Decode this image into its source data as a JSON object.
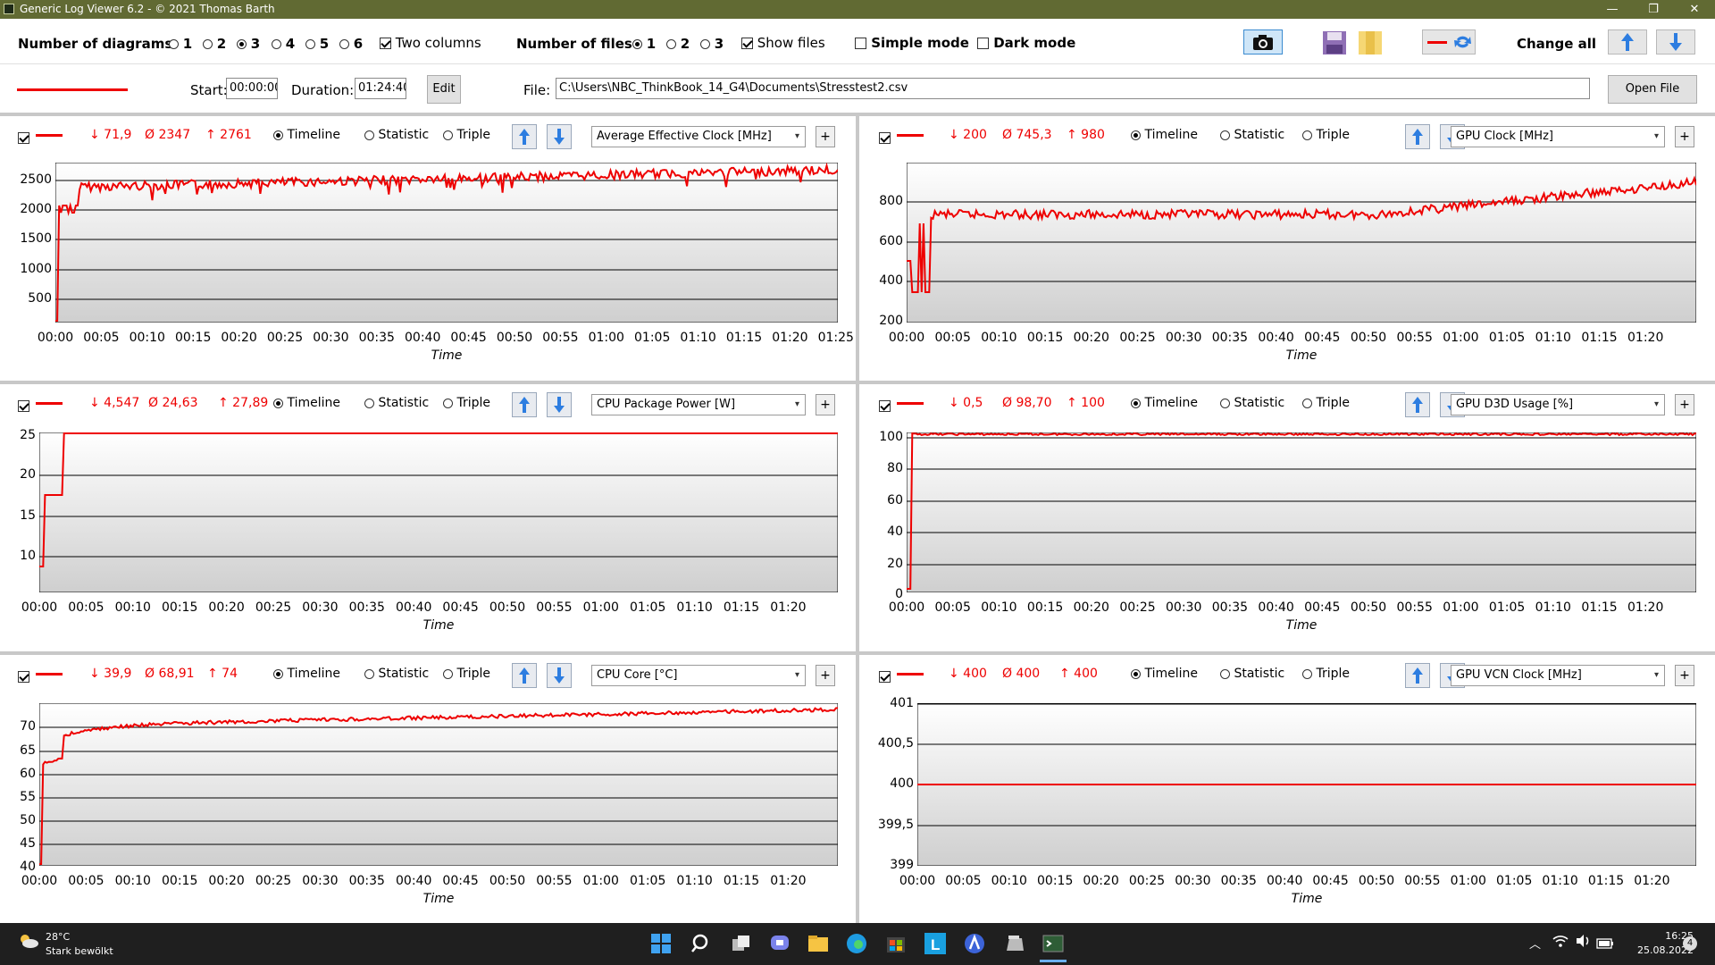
{
  "window": {
    "title": "Generic Log Viewer 6.2 - © 2021 Thomas Barth",
    "minimize": "—",
    "maximize": "❐",
    "close": "✕"
  },
  "toolbar": {
    "diagrams_label": "Number of diagrams",
    "diagram_options": [
      "1",
      "2",
      "3",
      "4",
      "5",
      "6"
    ],
    "diagrams_selected": "3",
    "two_columns_label": "Two columns",
    "two_columns_checked": true,
    "files_label": "Number of files",
    "file_options": [
      "1",
      "2",
      "3"
    ],
    "files_selected": "1",
    "show_files_label": "Show files",
    "show_files_checked": true,
    "simple_mode_label": "Simple mode",
    "simple_mode_checked": false,
    "dark_mode_label": "Dark mode",
    "dark_mode_checked": false,
    "change_all_label": "Change all"
  },
  "filebar": {
    "start_label": "Start:",
    "start_value": "00:00:00",
    "duration_label": "Duration:",
    "duration_value": "01:24:40",
    "edit_label": "Edit",
    "file_label": "File:",
    "file_path": "C:\\Users\\NBC_ThinkBook_14_G4\\Documents\\Stresstest2.csv",
    "open_file_label": "Open File"
  },
  "options": {
    "timeline": "Timeline",
    "statistic": "Statistic",
    "triple": "Triple"
  },
  "time_axis_label": "Time",
  "panels": [
    {
      "sensor": "Average Effective Clock [MHz]",
      "min": "↓ 71,9",
      "avg": "Ø 2347",
      "max": "↑ 2761",
      "yticks": [
        "2500",
        "2000",
        "1500",
        "1000",
        "500"
      ],
      "xticks": [
        "00:00",
        "00:05",
        "00:10",
        "00:15",
        "00:20",
        "00:25",
        "00:30",
        "00:35",
        "00:40",
        "00:45",
        "00:50",
        "00:55",
        "01:00",
        "01:05",
        "01:10",
        "01:15",
        "01:20",
        "01:25"
      ]
    },
    {
      "sensor": "GPU Clock [MHz]",
      "min": "↓ 200",
      "avg": "Ø 745,3",
      "max": "↑ 980",
      "yticks": [
        "800",
        "600",
        "400",
        "200"
      ],
      "xticks": [
        "00:00",
        "00:05",
        "00:10",
        "00:15",
        "00:20",
        "00:25",
        "00:30",
        "00:35",
        "00:40",
        "00:45",
        "00:50",
        "00:55",
        "01:00",
        "01:05",
        "01:10",
        "01:15",
        "01:20"
      ]
    },
    {
      "sensor": "CPU Package Power [W]",
      "min": "↓ 4,547",
      "avg": "Ø 24,63",
      "max": "↑ 27,89",
      "yticks": [
        "25",
        "20",
        "15",
        "10"
      ],
      "xticks": [
        "00:00",
        "00:05",
        "00:10",
        "00:15",
        "00:20",
        "00:25",
        "00:30",
        "00:35",
        "00:40",
        "00:45",
        "00:50",
        "00:55",
        "01:00",
        "01:05",
        "01:10",
        "01:15",
        "01:20"
      ]
    },
    {
      "sensor": "GPU D3D Usage [%]",
      "min": "↓ 0,5",
      "avg": "Ø 98,70",
      "max": "↑ 100",
      "yticks": [
        "100",
        "80",
        "60",
        "40",
        "20",
        "0"
      ],
      "xticks": [
        "00:00",
        "00:05",
        "00:10",
        "00:15",
        "00:20",
        "00:25",
        "00:30",
        "00:35",
        "00:40",
        "00:45",
        "00:50",
        "00:55",
        "01:00",
        "01:05",
        "01:10",
        "01:15",
        "01:20"
      ]
    },
    {
      "sensor": "CPU Core [°C]",
      "min": "↓ 39,9",
      "avg": "Ø 68,91",
      "max": "↑ 74",
      "yticks": [
        "70",
        "65",
        "60",
        "55",
        "50",
        "45",
        "40"
      ],
      "xticks": [
        "00:00",
        "00:05",
        "00:10",
        "00:15",
        "00:20",
        "00:25",
        "00:30",
        "00:35",
        "00:40",
        "00:45",
        "00:50",
        "00:55",
        "01:00",
        "01:05",
        "01:10",
        "01:15",
        "01:20"
      ]
    },
    {
      "sensor": "GPU VCN Clock [MHz]",
      "min": "↓ 400",
      "avg": "Ø 400",
      "max": "↑ 400",
      "yticks": [
        "401",
        "400,5",
        "400",
        "399,5",
        "399"
      ],
      "xticks": [
        "00:00",
        "00:05",
        "00:10",
        "00:15",
        "00:20",
        "00:25",
        "00:30",
        "00:35",
        "00:40",
        "00:45",
        "00:50",
        "00:55",
        "01:00",
        "01:05",
        "01:10",
        "01:15",
        "01:20"
      ]
    }
  ],
  "taskbar": {
    "weather_temp": "28°C",
    "weather_desc": "Stark bewölkt",
    "time": "16:25",
    "date": "25.08.2022",
    "notification_count": "4",
    "app_icons": [
      "windows-start-icon",
      "search-icon",
      "task-view-icon",
      "teams-chat-icon",
      "file-explorer-icon",
      "edge-icon",
      "store-icon",
      "launcher-l-icon",
      "app-a-icon",
      "folder-app-icon",
      "terminal-icon"
    ]
  },
  "colors": {
    "line": "#ee0000",
    "titlebar": "#616a33",
    "taskbar": "#1f1f1f",
    "accent_blue": "#2d7de0"
  }
}
